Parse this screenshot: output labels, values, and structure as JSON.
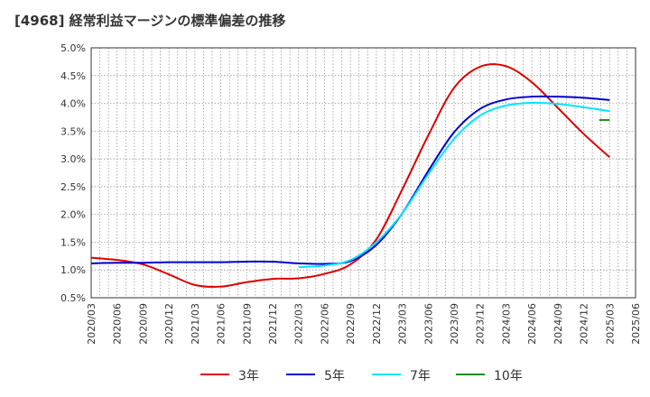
{
  "chart_data": {
    "type": "line",
    "title": "[4968]  経常利益マージンの標準偏差の推移",
    "xlabel": "",
    "ylabel": "",
    "x": [
      "2020/03",
      "2020/06",
      "2020/09",
      "2020/12",
      "2021/03",
      "2021/06",
      "2021/09",
      "2021/12",
      "2022/03",
      "2022/06",
      "2022/09",
      "2022/12",
      "2023/03",
      "2023/06",
      "2023/09",
      "2023/12",
      "2024/03",
      "2024/06",
      "2024/09",
      "2024/12",
      "2025/03",
      "2025/06"
    ],
    "ylim": [
      0.5,
      5.0
    ],
    "yticks": [
      "0.5%",
      "1.0%",
      "1.5%",
      "2.0%",
      "2.5%",
      "3.0%",
      "3.5%",
      "4.0%",
      "4.5%",
      "5.0%"
    ],
    "grid": true,
    "legend_position": "bottom",
    "series": [
      {
        "name": "3年",
        "color": "#dd0000",
        "values": [
          1.22,
          1.18,
          1.1,
          0.92,
          0.73,
          0.7,
          0.78,
          0.84,
          0.85,
          0.93,
          1.1,
          1.55,
          2.45,
          3.42,
          4.28,
          4.66,
          4.67,
          4.38,
          3.92,
          3.45,
          3.03,
          null
        ]
      },
      {
        "name": "5年",
        "color": "#0000cc",
        "values": [
          1.12,
          1.13,
          1.13,
          1.14,
          1.14,
          1.14,
          1.15,
          1.15,
          1.12,
          1.11,
          1.16,
          1.45,
          2.02,
          2.78,
          3.48,
          3.9,
          4.07,
          4.12,
          4.12,
          4.1,
          4.06,
          null
        ]
      },
      {
        "name": "7年",
        "color": "#00e5ff",
        "values": [
          null,
          null,
          null,
          null,
          null,
          null,
          null,
          null,
          1.05,
          1.08,
          1.18,
          1.5,
          2.02,
          2.72,
          3.36,
          3.78,
          3.96,
          4.01,
          3.99,
          3.93,
          3.86,
          null
        ]
      },
      {
        "name": "10年",
        "color": "#228b22",
        "values": [
          null,
          null,
          null,
          null,
          null,
          null,
          null,
          null,
          null,
          null,
          null,
          null,
          null,
          null,
          null,
          null,
          null,
          null,
          null,
          null,
          3.7,
          null
        ],
        "segment_x_start": "2024/12"
      }
    ]
  }
}
